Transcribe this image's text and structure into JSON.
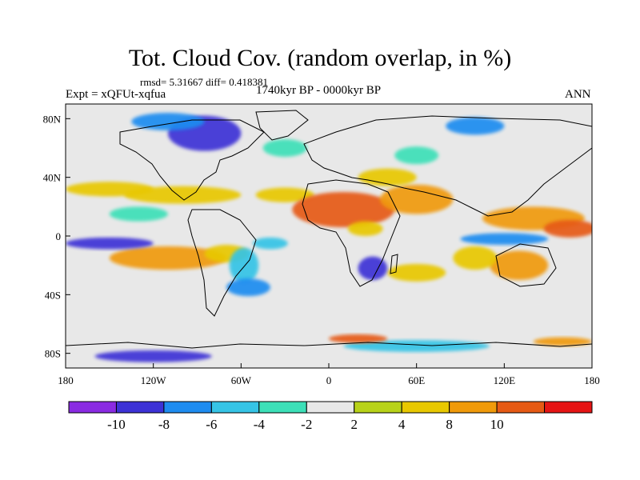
{
  "chart_data": {
    "type": "heatmap",
    "title": "Tot. Cloud Cov. (random overlap, in %)",
    "stats": "rmsd= 5.31667 diff= 0.418381",
    "left_label": "Expt = xQFUt-xqfua",
    "center_label": "1740kyr BP - 0000kyr BP",
    "right_label": "ANN",
    "x_ticks": [
      "180",
      "120W",
      "60W",
      "0",
      "60E",
      "120E",
      "180"
    ],
    "x_tick_lon": [
      -180,
      -120,
      -60,
      0,
      60,
      120,
      180
    ],
    "y_ticks": [
      "80N",
      "40N",
      "0",
      "40S",
      "80S"
    ],
    "y_tick_lat": [
      80,
      40,
      0,
      -40,
      -80
    ],
    "xlim": [
      -180,
      180
    ],
    "ylim": [
      -90,
      90
    ],
    "colorbar": {
      "labels": [
        "-10",
        "-8",
        "-6",
        "-4",
        "-2",
        "2",
        "4",
        "8",
        "10"
      ],
      "colors": [
        "#8a2be2",
        "#3c32d6",
        "#1e8cf0",
        "#36c4e6",
        "#3ce0b8",
        "#e8e8e8",
        "#b8d219",
        "#e8c800",
        "#f09a0a",
        "#e65a14",
        "#e61414"
      ]
    },
    "regions": [
      {
        "lon": -150,
        "lat": 32,
        "rx": 30,
        "ry": 5,
        "value": 6
      },
      {
        "lon": -100,
        "lat": 28,
        "rx": 40,
        "ry": 6,
        "value": 5
      },
      {
        "lon": -30,
        "lat": 28,
        "rx": 20,
        "ry": 5,
        "value": 4
      },
      {
        "lon": 10,
        "lat": 18,
        "rx": 35,
        "ry": 12,
        "value": 12
      },
      {
        "lon": 60,
        "lat": 25,
        "rx": 25,
        "ry": 10,
        "value": 8
      },
      {
        "lon": 40,
        "lat": 40,
        "rx": 20,
        "ry": 6,
        "value": 6
      },
      {
        "lon": 140,
        "lat": 12,
        "rx": 35,
        "ry": 8,
        "value": 8
      },
      {
        "lon": 165,
        "lat": 5,
        "rx": 18,
        "ry": 6,
        "value": 12
      },
      {
        "lon": 130,
        "lat": -20,
        "rx": 20,
        "ry": 10,
        "value": 8
      },
      {
        "lon": 100,
        "lat": -15,
        "rx": 15,
        "ry": 8,
        "value": 6
      },
      {
        "lon": -110,
        "lat": -15,
        "rx": 40,
        "ry": 8,
        "value": 8
      },
      {
        "lon": -70,
        "lat": -12,
        "rx": 15,
        "ry": 6,
        "value": 4
      },
      {
        "lon": 60,
        "lat": -25,
        "rx": 20,
        "ry": 6,
        "value": 6
      },
      {
        "lon": 25,
        "lat": 5,
        "rx": 12,
        "ry": 5,
        "value": 4
      },
      {
        "lon": -150,
        "lat": -5,
        "rx": 30,
        "ry": 4,
        "value": -10
      },
      {
        "lon": 120,
        "lat": -2,
        "rx": 30,
        "ry": 4,
        "value": -8
      },
      {
        "lon": -85,
        "lat": 70,
        "rx": 25,
        "ry": 12,
        "value": -10
      },
      {
        "lon": -110,
        "lat": 78,
        "rx": 25,
        "ry": 6,
        "value": -8
      },
      {
        "lon": 100,
        "lat": 75,
        "rx": 20,
        "ry": 6,
        "value": -8
      },
      {
        "lon": 30,
        "lat": -22,
        "rx": 10,
        "ry": 8,
        "value": -10
      },
      {
        "lon": -58,
        "lat": -20,
        "rx": 10,
        "ry": 12,
        "value": -6
      },
      {
        "lon": -55,
        "lat": -35,
        "rx": 15,
        "ry": 6,
        "value": -8
      },
      {
        "lon": -40,
        "lat": -5,
        "rx": 12,
        "ry": 4,
        "value": -5
      },
      {
        "lon": 60,
        "lat": 55,
        "rx": 15,
        "ry": 6,
        "value": -4
      },
      {
        "lon": -30,
        "lat": 60,
        "rx": 15,
        "ry": 6,
        "value": -4
      },
      {
        "lon": -130,
        "lat": 15,
        "rx": 20,
        "ry": 5,
        "value": -4
      },
      {
        "lon": -120,
        "lat": -82,
        "rx": 40,
        "ry": 4,
        "value": -10
      },
      {
        "lon": 60,
        "lat": -75,
        "rx": 50,
        "ry": 4,
        "value": -6
      },
      {
        "lon": 20,
        "lat": -70,
        "rx": 20,
        "ry": 3,
        "value": 12
      },
      {
        "lon": 160,
        "lat": -72,
        "rx": 20,
        "ry": 3,
        "value": 8
      }
    ]
  }
}
